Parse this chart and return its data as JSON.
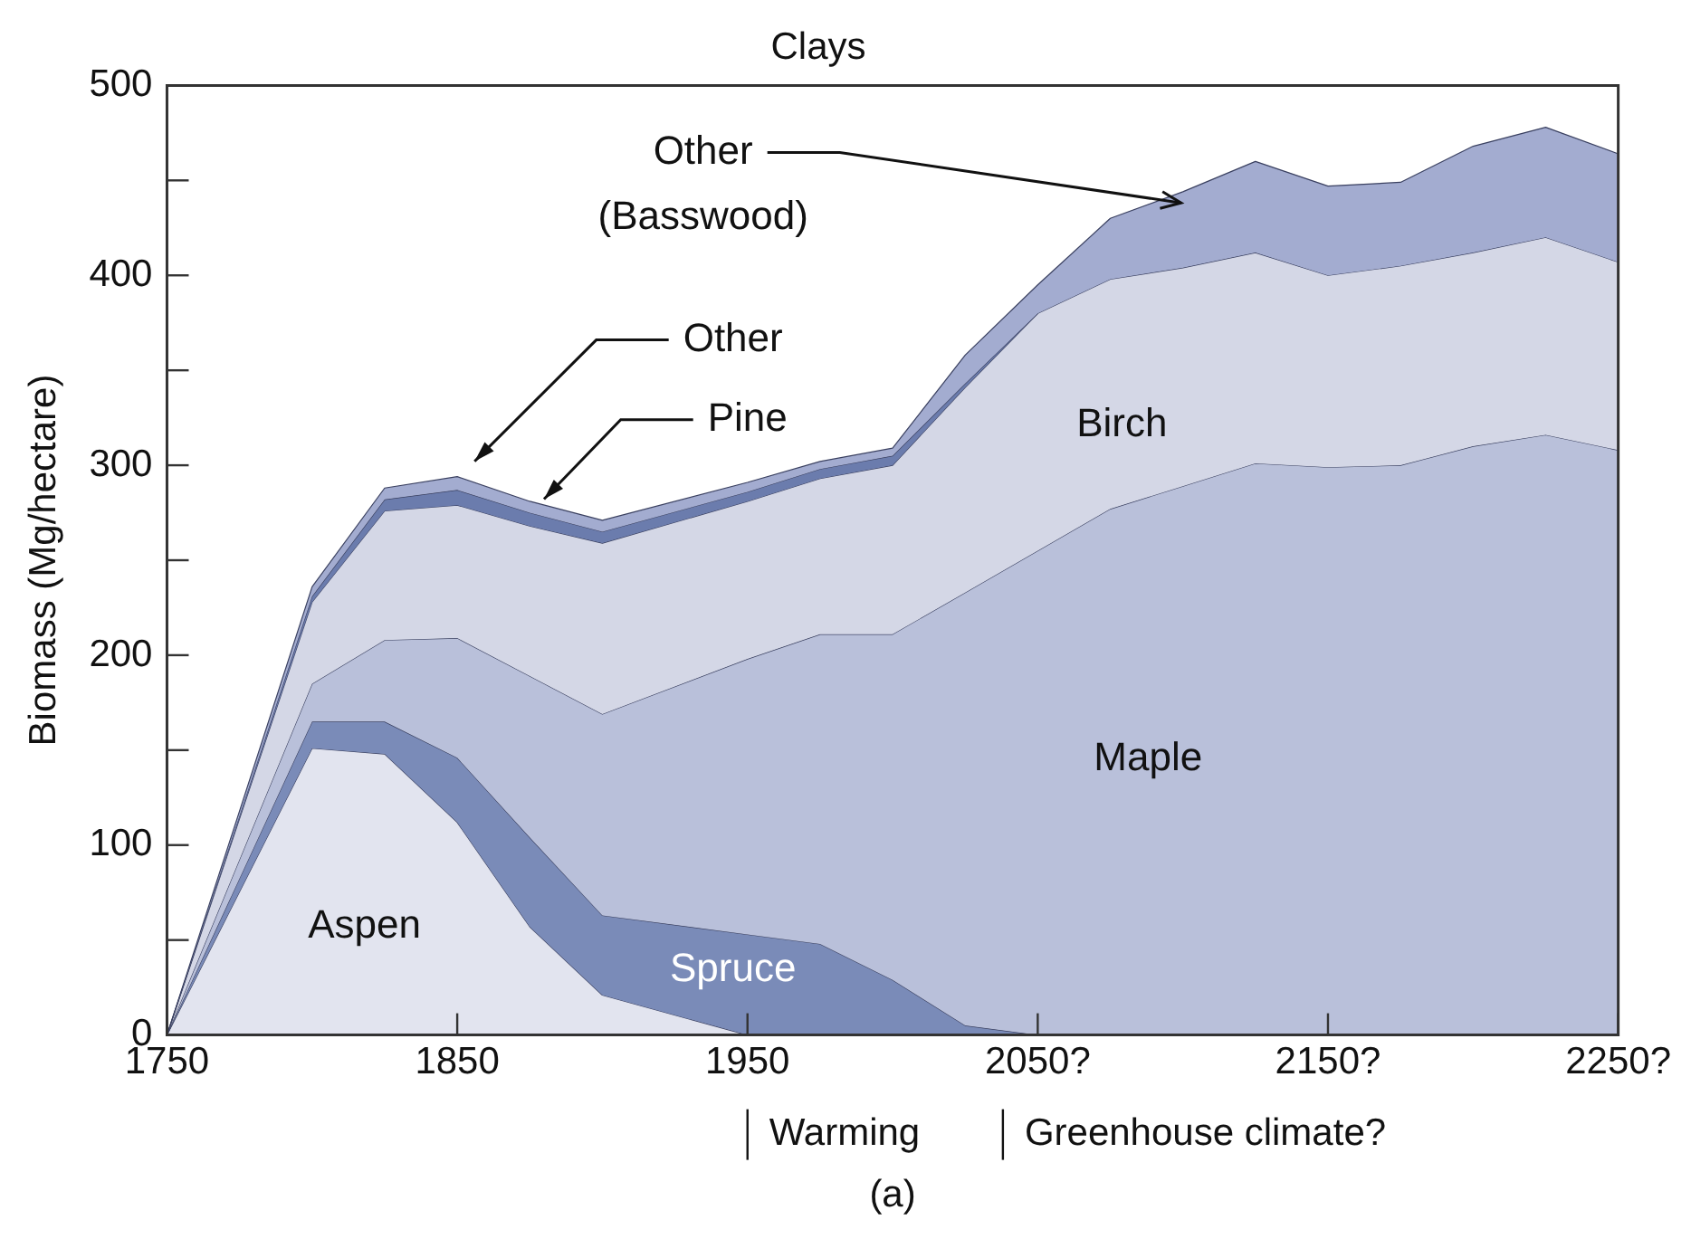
{
  "chart_data": {
    "type": "area",
    "stacked": true,
    "title": "Clays",
    "ylabel": "Biomass (Mg/hectare)",
    "x": [
      1750,
      1800,
      1825,
      1850,
      1875,
      1900,
      1950,
      1975,
      2000,
      2025,
      2050,
      2075,
      2100,
      2125,
      2150,
      2175,
      2200,
      2225,
      2250
    ],
    "series": [
      {
        "name": "Aspen",
        "color": "#e2e4ef",
        "values": [
          0,
          151,
          148,
          112,
          57,
          21,
          0,
          null,
          null,
          null,
          null,
          null,
          null,
          null,
          null,
          null,
          null,
          null,
          null
        ]
      },
      {
        "name": "Spruce",
        "color": "#7a8bb8",
        "values": [
          0,
          14,
          17,
          34,
          47,
          42,
          53,
          48,
          29,
          5,
          0,
          null,
          null,
          null,
          null,
          null,
          null,
          null,
          null
        ]
      },
      {
        "name": "Maple",
        "color": "#b9c0da",
        "values": [
          0,
          20,
          43,
          63,
          85,
          106,
          145,
          163,
          182,
          228,
          255,
          277,
          289,
          301,
          299,
          300,
          310,
          316,
          308
        ]
      },
      {
        "name": "Birch",
        "color": "#d4d7e6",
        "values": [
          0,
          43,
          68,
          70,
          79,
          90,
          83,
          82,
          89,
          108,
          125,
          121,
          115,
          111,
          101,
          105,
          102,
          104,
          99
        ]
      },
      {
        "name": "Pine",
        "color": "#6b7cad",
        "values": [
          0,
          3,
          6,
          8,
          7,
          6,
          5,
          5,
          5,
          2,
          0,
          null,
          null,
          null,
          null,
          null,
          null,
          null,
          null
        ]
      },
      {
        "name": "Other",
        "color": "#a3acd0",
        "values": [
          0,
          5,
          6,
          7,
          6,
          6,
          5,
          4,
          4,
          15,
          15,
          32,
          40,
          48,
          47,
          44,
          56,
          58,
          57
        ]
      }
    ],
    "xlim": [
      1750,
      2250
    ],
    "xticks": [
      1750,
      1850,
      1950,
      {
        "value": 2050,
        "label": "2050?"
      },
      {
        "value": 2150,
        "label": "2150?"
      },
      {
        "value": 2250,
        "label": "2250?"
      }
    ],
    "ylim": [
      0,
      500
    ],
    "yticks": [
      0,
      {
        "value": 50,
        "label": null
      },
      100,
      {
        "value": 150,
        "label": null
      },
      200,
      {
        "value": 250,
        "label": null
      },
      300,
      {
        "value": 350,
        "label": null
      },
      400,
      {
        "value": 450,
        "label": null
      },
      500
    ],
    "grid": false,
    "legend": false,
    "annotations": [
      "Warming",
      "Greenhouse climate?",
      "(a)",
      "Other (Basswood)"
    ]
  }
}
